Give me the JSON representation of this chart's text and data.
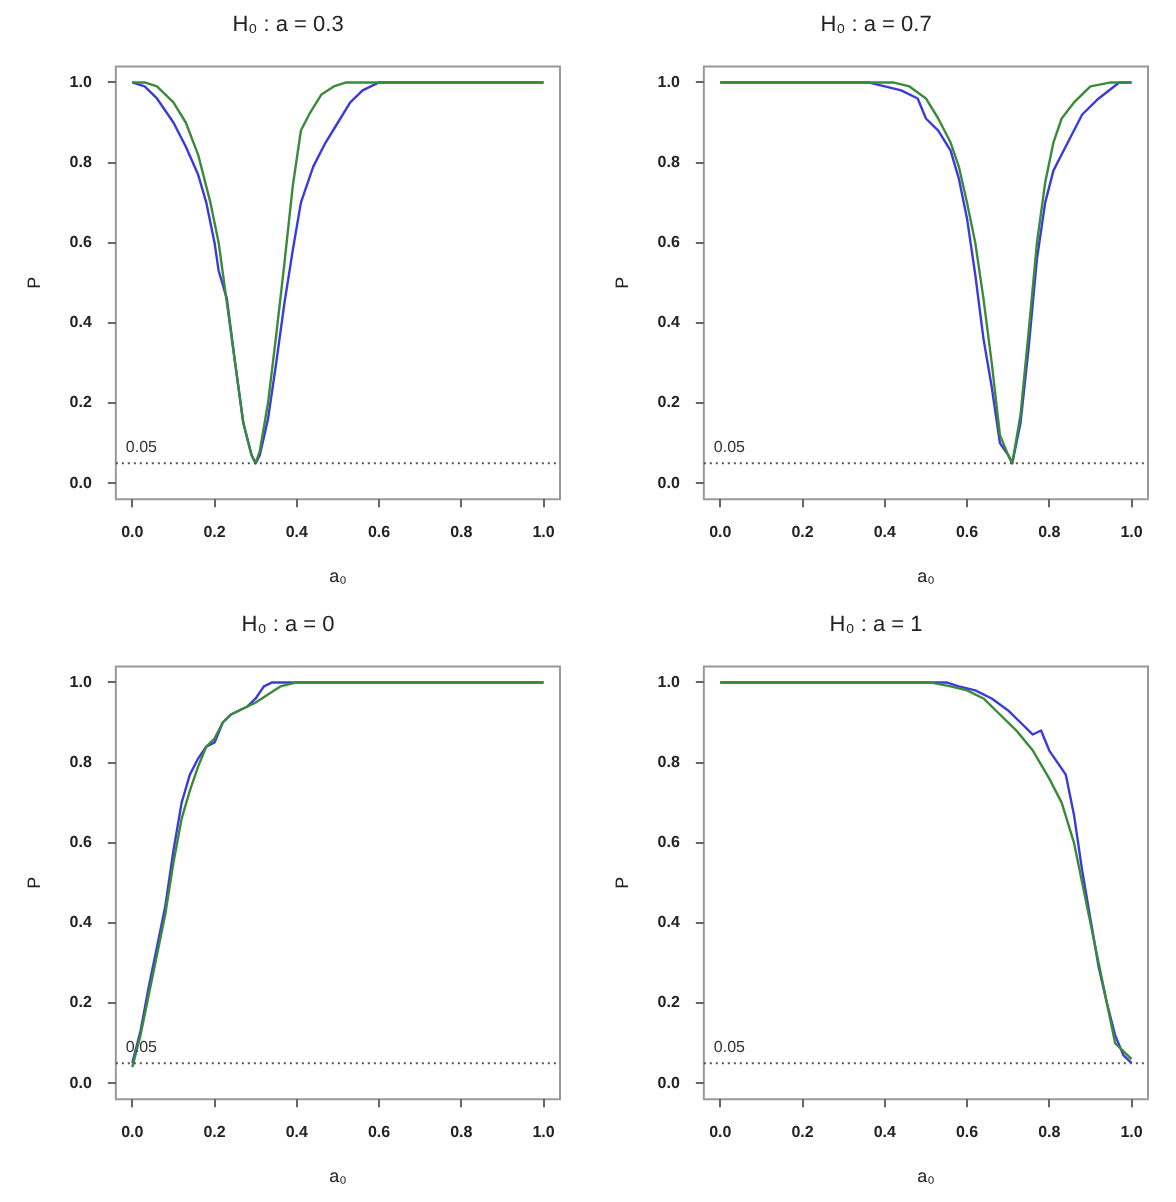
{
  "chart_data": [
    {
      "type": "line",
      "title": "H₀ : a = 0.3",
      "xlabel": "a₀",
      "ylabel": "P",
      "xlim": [
        -0.04,
        1.04
      ],
      "ylim": [
        -0.04,
        1.04
      ],
      "xticks": [
        {
          "value": 0,
          "label": "0.0"
        },
        {
          "value": 0.2,
          "label": "0.2"
        },
        {
          "value": 0.4,
          "label": "0.4"
        },
        {
          "value": 0.6,
          "label": "0.6"
        },
        {
          "value": 0.8,
          "label": "0.8"
        },
        {
          "value": 1,
          "label": "1.0"
        }
      ],
      "yticks": [
        {
          "value": 0,
          "label": "0.0"
        },
        {
          "value": 0.2,
          "label": "0.2"
        },
        {
          "value": 0.4,
          "label": "0.4"
        },
        {
          "value": 0.6,
          "label": "0.6"
        },
        {
          "value": 0.8,
          "label": "0.8"
        },
        {
          "value": 1,
          "label": "1.0"
        }
      ],
      "marker": "none",
      "ref_lines": [
        {
          "axis": "y",
          "value": 0.05,
          "label": "0.05",
          "line_style": "dotted",
          "color": "#555555"
        }
      ],
      "series": [
        {
          "color": "#3a8a3a",
          "x": [
            0,
            0.03,
            0.06,
            0.1,
            0.13,
            0.16,
            0.19,
            0.21,
            0.23,
            0.25,
            0.27,
            0.29,
            0.3,
            0.31,
            0.33,
            0.35,
            0.37,
            0.39,
            0.41,
            0.43,
            0.46,
            0.49,
            0.52,
            0.56,
            1
          ],
          "values": [
            1,
            1,
            0.99,
            0.95,
            0.9,
            0.82,
            0.7,
            0.6,
            0.45,
            0.3,
            0.15,
            0.07,
            0.05,
            0.08,
            0.2,
            0.37,
            0.55,
            0.74,
            0.88,
            0.92,
            0.97,
            0.99,
            1,
            1,
            1
          ]
        },
        {
          "color": "#3b3bdc",
          "x": [
            0,
            0.03,
            0.06,
            0.1,
            0.13,
            0.16,
            0.18,
            0.2,
            0.21,
            0.23,
            0.25,
            0.27,
            0.29,
            0.3,
            0.31,
            0.33,
            0.35,
            0.37,
            0.39,
            0.41,
            0.44,
            0.47,
            0.5,
            0.53,
            0.56,
            0.6,
            1
          ],
          "values": [
            1,
            0.99,
            0.96,
            0.9,
            0.84,
            0.77,
            0.7,
            0.6,
            0.53,
            0.46,
            0.3,
            0.15,
            0.07,
            0.05,
            0.07,
            0.16,
            0.3,
            0.45,
            0.58,
            0.7,
            0.79,
            0.85,
            0.9,
            0.95,
            0.98,
            1,
            1
          ]
        }
      ]
    },
    {
      "type": "line",
      "title": "H₀ : a = 0.7",
      "xlabel": "a₀",
      "ylabel": "P",
      "xlim": [
        -0.04,
        1.04
      ],
      "ylim": [
        -0.04,
        1.04
      ],
      "xticks": [
        {
          "value": 0,
          "label": "0.0"
        },
        {
          "value": 0.2,
          "label": "0.2"
        },
        {
          "value": 0.4,
          "label": "0.4"
        },
        {
          "value": 0.6,
          "label": "0.6"
        },
        {
          "value": 0.8,
          "label": "0.8"
        },
        {
          "value": 1,
          "label": "1.0"
        }
      ],
      "yticks": [
        {
          "value": 0,
          "label": "0.0"
        },
        {
          "value": 0.2,
          "label": "0.2"
        },
        {
          "value": 0.4,
          "label": "0.4"
        },
        {
          "value": 0.6,
          "label": "0.6"
        },
        {
          "value": 0.8,
          "label": "0.8"
        },
        {
          "value": 1,
          "label": "1.0"
        }
      ],
      "marker": "none",
      "ref_lines": [
        {
          "axis": "y",
          "value": 0.05,
          "label": "0.05",
          "line_style": "dotted",
          "color": "#555555"
        }
      ],
      "series": [
        {
          "color": "#3a8a3a",
          "x": [
            0,
            0.42,
            0.46,
            0.5,
            0.53,
            0.56,
            0.58,
            0.6,
            0.62,
            0.64,
            0.66,
            0.68,
            0.7,
            0.71,
            0.73,
            0.75,
            0.77,
            0.79,
            0.81,
            0.83,
            0.86,
            0.9,
            0.95,
            1
          ],
          "values": [
            1,
            1,
            0.99,
            0.96,
            0.91,
            0.85,
            0.79,
            0.7,
            0.6,
            0.46,
            0.3,
            0.12,
            0.07,
            0.05,
            0.17,
            0.38,
            0.6,
            0.75,
            0.85,
            0.91,
            0.95,
            0.99,
            1,
            1
          ]
        },
        {
          "color": "#3b3bdc",
          "x": [
            0,
            0.36,
            0.4,
            0.44,
            0.48,
            0.5,
            0.53,
            0.56,
            0.58,
            0.6,
            0.62,
            0.64,
            0.66,
            0.68,
            0.7,
            0.71,
            0.73,
            0.75,
            0.77,
            0.79,
            0.81,
            0.83,
            0.85,
            0.88,
            0.92,
            0.97,
            1
          ],
          "values": [
            1,
            1,
            0.99,
            0.98,
            0.96,
            0.91,
            0.88,
            0.83,
            0.76,
            0.66,
            0.52,
            0.36,
            0.24,
            0.1,
            0.07,
            0.05,
            0.15,
            0.34,
            0.56,
            0.7,
            0.78,
            0.82,
            0.86,
            0.92,
            0.96,
            1,
            1
          ]
        }
      ]
    },
    {
      "type": "line",
      "title": "H₀ : a = 0",
      "xlabel": "a₀",
      "ylabel": "P",
      "xlim": [
        -0.04,
        1.04
      ],
      "ylim": [
        -0.04,
        1.04
      ],
      "xticks": [
        {
          "value": 0,
          "label": "0.0"
        },
        {
          "value": 0.2,
          "label": "0.2"
        },
        {
          "value": 0.4,
          "label": "0.4"
        },
        {
          "value": 0.6,
          "label": "0.6"
        },
        {
          "value": 0.8,
          "label": "0.8"
        },
        {
          "value": 1,
          "label": "1.0"
        }
      ],
      "yticks": [
        {
          "value": 0,
          "label": "0.0"
        },
        {
          "value": 0.2,
          "label": "0.2"
        },
        {
          "value": 0.4,
          "label": "0.4"
        },
        {
          "value": 0.6,
          "label": "0.6"
        },
        {
          "value": 0.8,
          "label": "0.8"
        },
        {
          "value": 1,
          "label": "1.0"
        }
      ],
      "marker": "none",
      "ref_lines": [
        {
          "axis": "y",
          "value": 0.05,
          "label": "0.05",
          "line_style": "dotted",
          "color": "#555555"
        }
      ],
      "series": [
        {
          "color": "#3a8a3a",
          "x": [
            0,
            0.02,
            0.04,
            0.06,
            0.08,
            0.1,
            0.12,
            0.14,
            0.16,
            0.18,
            0.2,
            0.22,
            0.24,
            0.26,
            0.28,
            0.3,
            0.33,
            0.36,
            0.4,
            1
          ],
          "values": [
            0.04,
            0.12,
            0.22,
            0.32,
            0.42,
            0.55,
            0.66,
            0.73,
            0.79,
            0.84,
            0.86,
            0.9,
            0.92,
            0.93,
            0.94,
            0.95,
            0.97,
            0.99,
            1,
            1
          ]
        },
        {
          "color": "#3b3bdc",
          "x": [
            0,
            0.02,
            0.04,
            0.06,
            0.08,
            0.1,
            0.12,
            0.14,
            0.16,
            0.18,
            0.2,
            0.22,
            0.24,
            0.26,
            0.28,
            0.3,
            0.32,
            0.34,
            0.37,
            1
          ],
          "values": [
            0.05,
            0.13,
            0.24,
            0.34,
            0.44,
            0.58,
            0.7,
            0.77,
            0.81,
            0.84,
            0.85,
            0.9,
            0.92,
            0.93,
            0.94,
            0.96,
            0.99,
            1,
            1,
            1
          ]
        }
      ]
    },
    {
      "type": "line",
      "title": "H₀ : a = 1",
      "xlabel": "a₀",
      "ylabel": "P",
      "xlim": [
        -0.04,
        1.04
      ],
      "ylim": [
        -0.04,
        1.04
      ],
      "xticks": [
        {
          "value": 0,
          "label": "0.0"
        },
        {
          "value": 0.2,
          "label": "0.2"
        },
        {
          "value": 0.4,
          "label": "0.4"
        },
        {
          "value": 0.6,
          "label": "0.6"
        },
        {
          "value": 0.8,
          "label": "0.8"
        },
        {
          "value": 1,
          "label": "1.0"
        }
      ],
      "yticks": [
        {
          "value": 0,
          "label": "0.0"
        },
        {
          "value": 0.2,
          "label": "0.2"
        },
        {
          "value": 0.4,
          "label": "0.4"
        },
        {
          "value": 0.6,
          "label": "0.6"
        },
        {
          "value": 0.8,
          "label": "0.8"
        },
        {
          "value": 1,
          "label": "1.0"
        }
      ],
      "marker": "none",
      "ref_lines": [
        {
          "axis": "y",
          "value": 0.05,
          "label": "0.05",
          "line_style": "dotted",
          "color": "#555555"
        }
      ],
      "series": [
        {
          "color": "#3a8a3a",
          "x": [
            0,
            0.51,
            0.56,
            0.6,
            0.64,
            0.68,
            0.72,
            0.76,
            0.8,
            0.83,
            0.86,
            0.88,
            0.9,
            0.92,
            0.94,
            0.96,
            0.98,
            1
          ],
          "values": [
            1,
            1,
            0.99,
            0.98,
            0.96,
            0.92,
            0.88,
            0.83,
            0.76,
            0.7,
            0.6,
            0.5,
            0.4,
            0.3,
            0.2,
            0.1,
            0.08,
            0.06
          ]
        },
        {
          "color": "#3b3bdc",
          "x": [
            0,
            0.55,
            0.58,
            0.62,
            0.66,
            0.7,
            0.73,
            0.76,
            0.78,
            0.8,
            0.82,
            0.84,
            0.86,
            0.88,
            0.9,
            0.92,
            0.94,
            0.96,
            0.98,
            1
          ],
          "values": [
            1,
            1,
            0.99,
            0.98,
            0.96,
            0.93,
            0.9,
            0.87,
            0.88,
            0.83,
            0.8,
            0.77,
            0.67,
            0.53,
            0.41,
            0.29,
            0.2,
            0.12,
            0.07,
            0.05
          ]
        }
      ]
    }
  ]
}
